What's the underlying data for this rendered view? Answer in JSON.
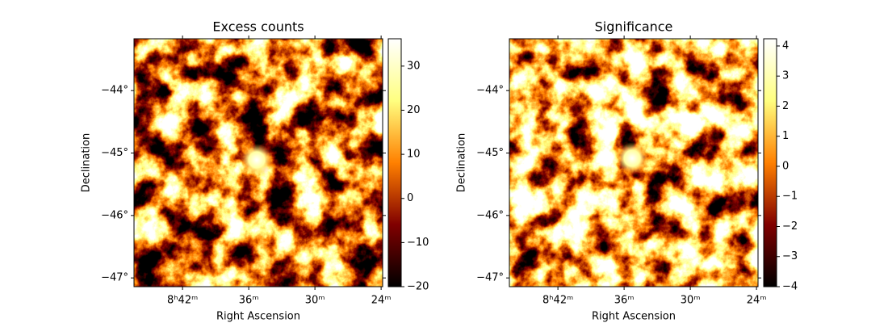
{
  "chart_data": [
    {
      "type": "heatmap",
      "title": "Excess counts",
      "xlabel": "Right Ascension",
      "ylabel": "Declination",
      "xlim": [
        8.7733,
        8.3977
      ],
      "xticks": [
        {
          "value": 8.7,
          "label": "8ʰ42ᵐ"
        },
        {
          "value": 8.6,
          "label": "36ᵐ"
        },
        {
          "value": 8.5,
          "label": "30ᵐ"
        },
        {
          "value": 8.4,
          "label": "24ᵐ"
        }
      ],
      "ylim": [
        -47.14,
        -43.17
      ],
      "yticks": [
        {
          "value": -44,
          "label": "−44°"
        },
        {
          "value": -45,
          "label": "−45°"
        },
        {
          "value": -46,
          "label": "−46°"
        },
        {
          "value": -47,
          "label": "−47°"
        }
      ],
      "colormap": "afmhot",
      "clim": [
        -20,
        36.2
      ],
      "cticks": [
        {
          "value": -20,
          "label": "−20"
        },
        {
          "value": -10,
          "label": "−10"
        },
        0,
        10,
        20,
        30
      ]
    },
    {
      "type": "heatmap",
      "title": "Significance",
      "xlabel": "Right Ascension",
      "ylabel": "Declination",
      "xlim": [
        8.7733,
        8.3977
      ],
      "xticks": [
        {
          "value": 8.7,
          "label": "8ʰ42ᵐ"
        },
        {
          "value": 8.6,
          "label": "36ᵐ"
        },
        {
          "value": 8.5,
          "label": "30ᵐ"
        },
        {
          "value": 8.4,
          "label": "24ᵐ"
        }
      ],
      "ylim": [
        -47.14,
        -43.17
      ],
      "yticks": [
        {
          "value": -44,
          "label": "−44°"
        },
        {
          "value": -45,
          "label": "−45°"
        },
        {
          "value": -46,
          "label": "−46°"
        },
        {
          "value": -47,
          "label": "−47°"
        }
      ],
      "colormap": "afmhot",
      "clim": [
        -4,
        4.24
      ],
      "cticks": [
        {
          "value": -4,
          "label": "−4"
        },
        {
          "value": -3,
          "label": "−3"
        },
        {
          "value": -2,
          "label": "−2"
        },
        {
          "value": -1,
          "label": "−1"
        },
        0,
        1,
        2,
        3,
        4
      ]
    }
  ]
}
